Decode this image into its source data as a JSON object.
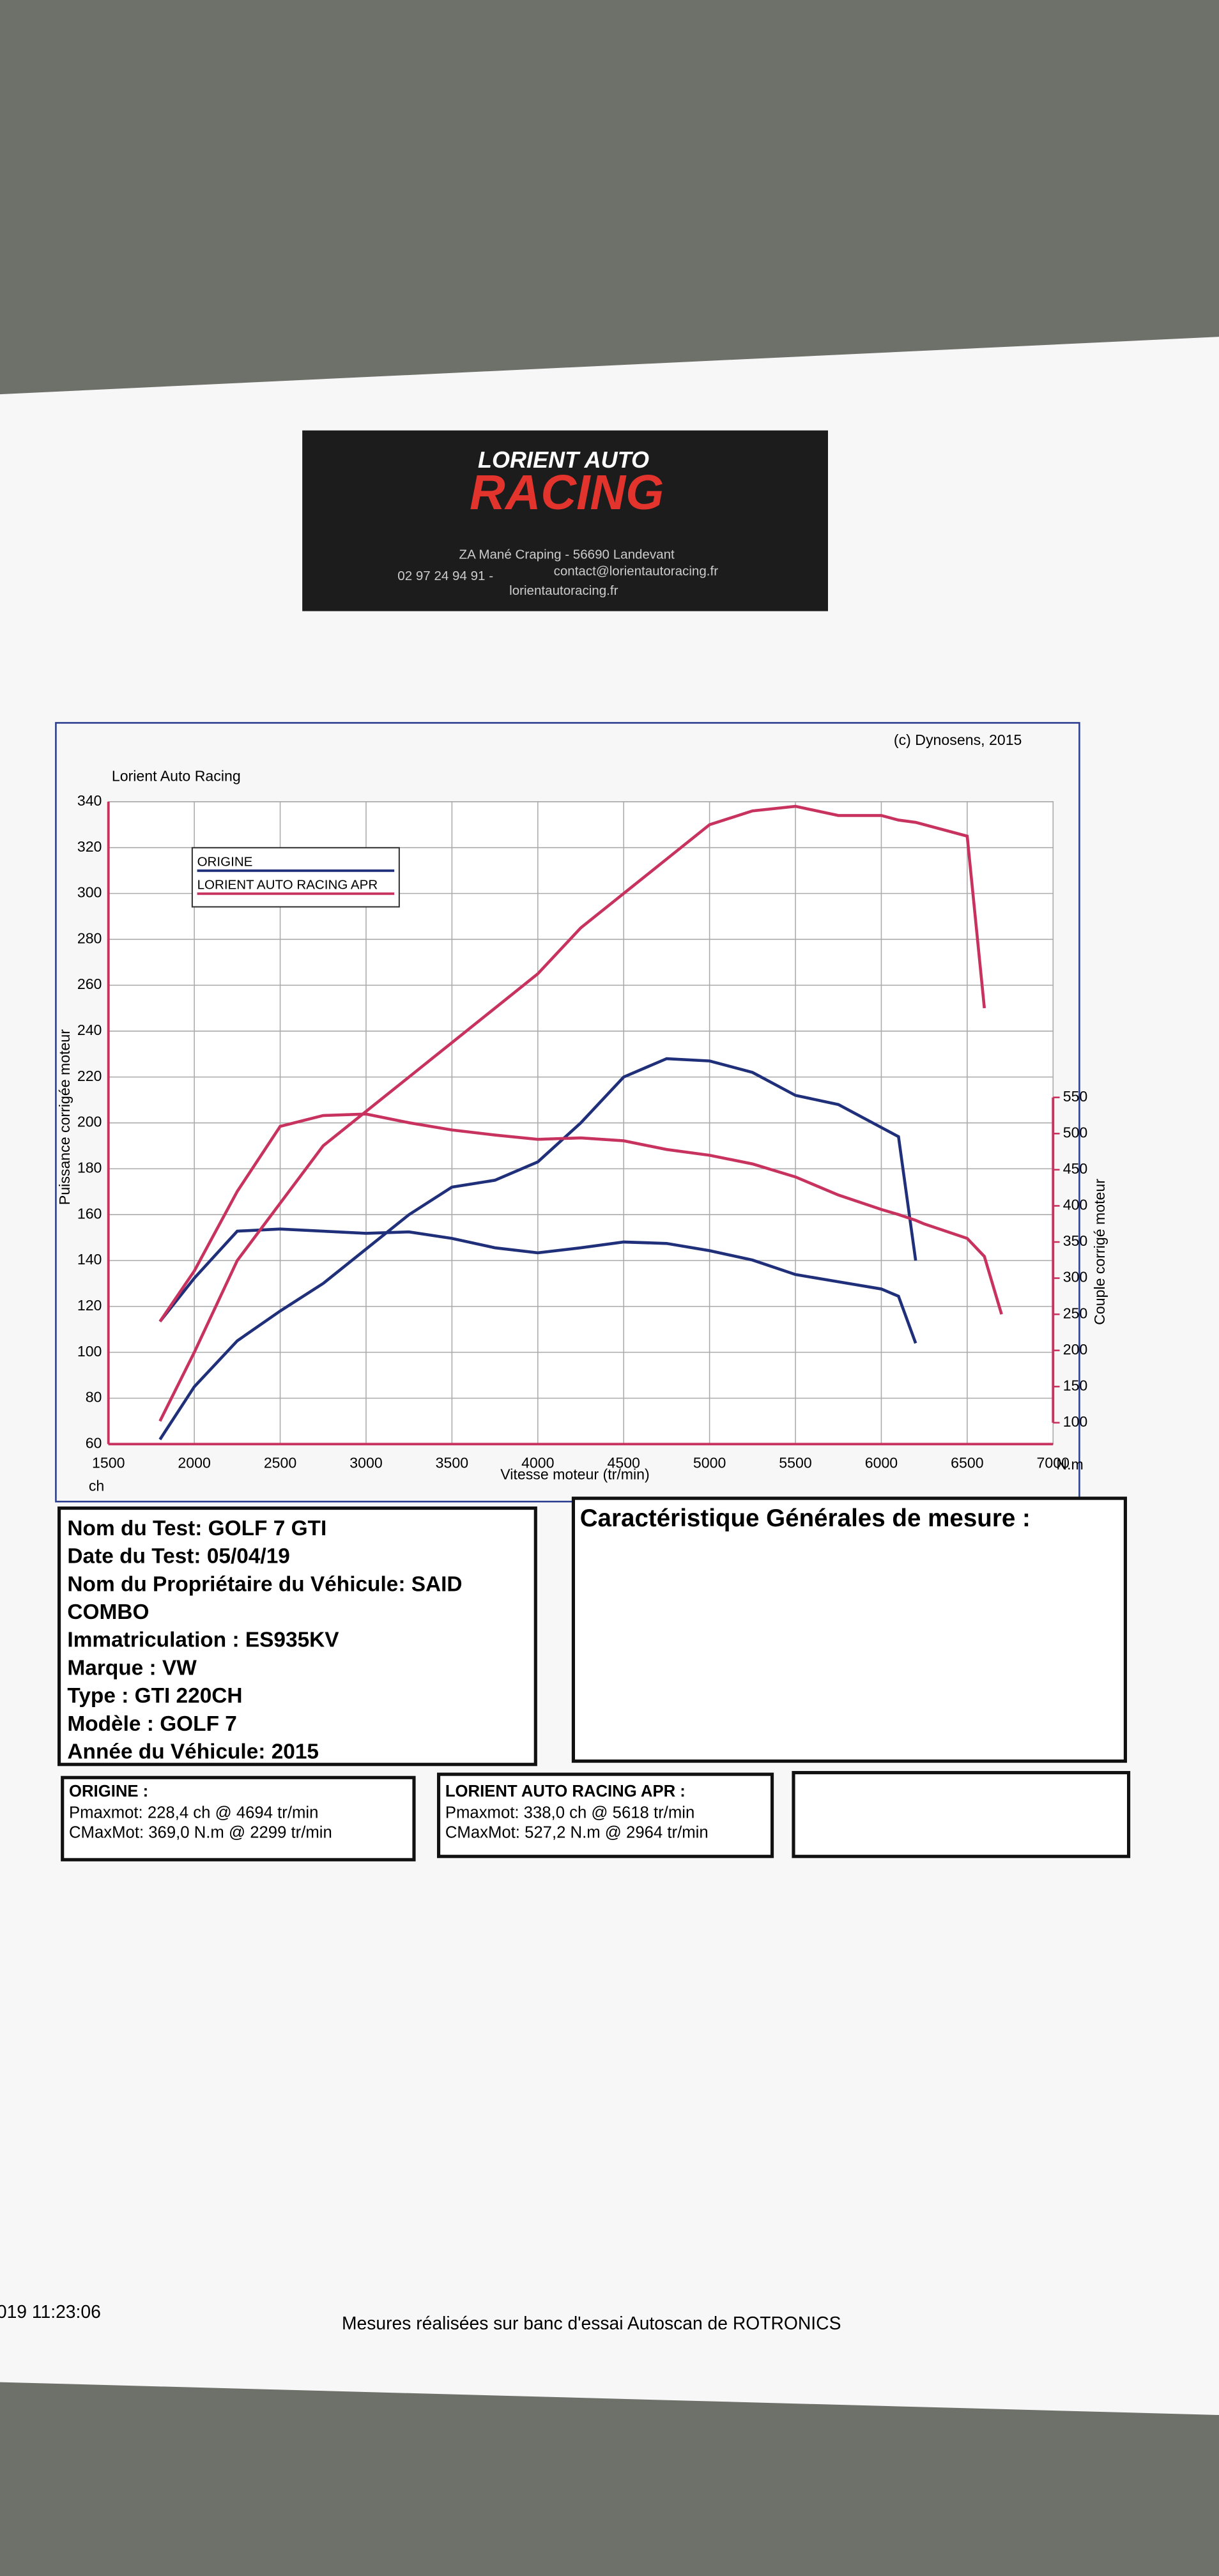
{
  "header": {
    "brand_top": "LORIENT AUTO",
    "brand_main": "RACING",
    "address": "ZA Mané Craping - 56690 Landevant",
    "phone": "02 97 24 94 91 -",
    "email": "contact@lorientautoracing.fr",
    "website": "lorientautoracing.fr"
  },
  "chart_data": {
    "type": "line",
    "title": "Lorient Auto Racing",
    "copyright": "(c) Dynosens, 2015",
    "x_label": "Vitesse moteur (tr/min)",
    "y_label": "Puissance corrigée moteur",
    "y2_label": "Couple corrigé moteur",
    "y_unit": "ch",
    "y2_unit": "N.m",
    "x": [
      1800,
      2000,
      2250,
      2500,
      2750,
      3000,
      3250,
      3500,
      3750,
      4000,
      4250,
      4500,
      4750,
      5000,
      5250,
      5500,
      5750,
      6000,
      6100,
      6200,
      6250,
      6500,
      6600,
      6700
    ],
    "series": [
      {
        "name": "ORIGINE",
        "color": "#1f2f7a",
        "values": [
          62,
          85,
          105,
          118,
          130,
          145,
          160,
          172,
          175,
          183,
          200,
          220,
          228,
          227,
          222,
          212,
          208,
          198,
          194,
          140,
          null,
          null,
          null,
          null
        ]
      },
      {
        "color": "#1f2f7a",
        "axis": "y2",
        "values": [
          240,
          300,
          365,
          368,
          365,
          362,
          364,
          355,
          342,
          335,
          342,
          350,
          348,
          338,
          325,
          305,
          295,
          285,
          275,
          210,
          null,
          null,
          null,
          null
        ]
      },
      {
        "name": "LORIENT AUTO RACING APR",
        "color": "#c8325f",
        "values": [
          70,
          100,
          140,
          165,
          190,
          205,
          220,
          235,
          250,
          265,
          285,
          300,
          315,
          330,
          336,
          338,
          334,
          334,
          332,
          331,
          330,
          325,
          250,
          null
        ]
      },
      {
        "color": "#c8325f",
        "axis": "y2",
        "values": [
          240,
          310,
          420,
          510,
          525,
          527,
          515,
          505,
          498,
          492,
          494,
          490,
          478,
          470,
          458,
          440,
          415,
          395,
          388,
          380,
          375,
          355,
          330,
          250
        ]
      }
    ],
    "xlim": [
      1500,
      7000
    ],
    "xticks": [
      1500,
      2000,
      2500,
      3000,
      3500,
      4000,
      4500,
      5000,
      5500,
      6000,
      6500,
      7000
    ],
    "ylim": [
      60,
      340
    ],
    "yticks": [
      60,
      80,
      100,
      120,
      140,
      160,
      180,
      200,
      220,
      240,
      260,
      280,
      300,
      320,
      340
    ],
    "y2lim": [
      100,
      550
    ],
    "y2ticks": [
      100,
      150,
      200,
      250,
      300,
      350,
      400,
      450,
      500,
      550
    ],
    "grid": true,
    "legend": "upper left"
  },
  "info": {
    "lines": [
      "Nom du Test: GOLF 7 GTI",
      "Date du Test: 05/04/19",
      "Nom du Propriétaire du Véhicule: SAID",
      "COMBO",
      "Immatriculation  : ES935KV",
      "Marque  : VW",
      "Type  : GTI 220CH",
      "Modèle  : GOLF 7",
      "Année du Véhicule: 2015"
    ],
    "general_title": "Caractéristique Générales de mesure :"
  },
  "results": [
    {
      "title": "ORIGINE :",
      "lines": [
        "Pmaxmot: 228,4 ch @ 4694 tr/min",
        "CMaxMot: 369,0 N.m @ 2299 tr/min"
      ]
    },
    {
      "title": "LORIENT AUTO RACING APR :",
      "lines": [
        "Pmaxmot: 338,0 ch @ 5618 tr/min",
        "CMaxMot: 527,2 N.m @ 2964 tr/min"
      ]
    }
  ],
  "footer": {
    "timestamp": "019 11:23:06",
    "note": "Mesures réalisées sur banc d'essai Autoscan de ROTRONICS"
  }
}
